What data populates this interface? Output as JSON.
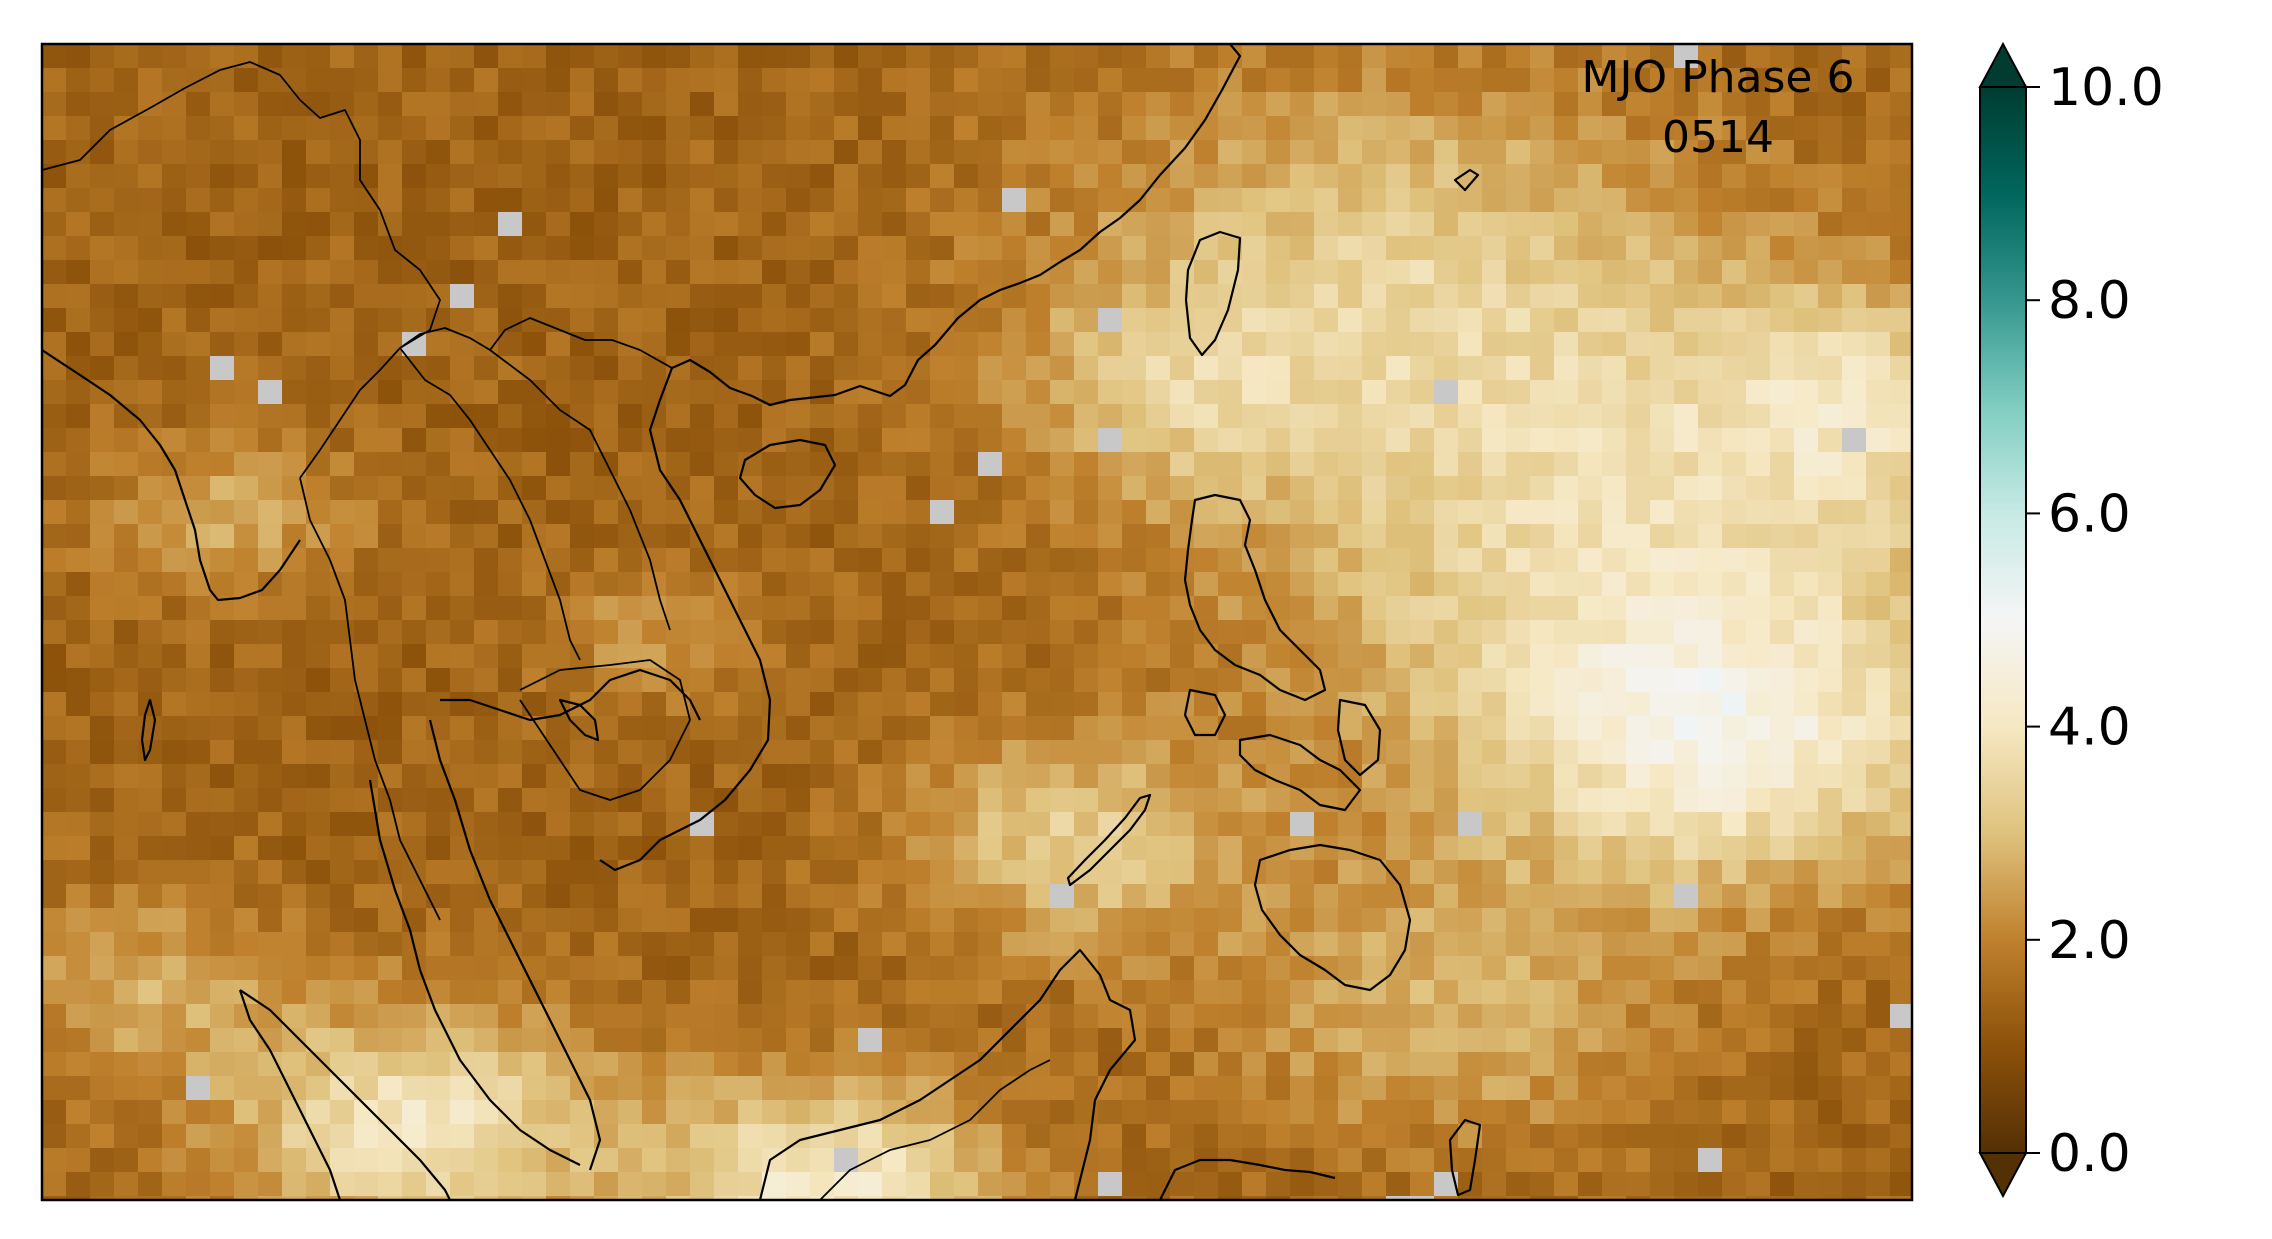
{
  "map": {
    "title": "MJO Phase 6",
    "subtitle": "0514",
    "variable_scale": {
      "min": 0.0,
      "max": 10.0,
      "extend": "both",
      "colormap": "BrBG",
      "missing_color": "#c8c8c8"
    },
    "colorbar": {
      "ticks": [
        {
          "value": 0.0,
          "label": "0.0"
        },
        {
          "value": 2.0,
          "label": "2.0"
        },
        {
          "value": 4.0,
          "label": "4.0"
        },
        {
          "value": 6.0,
          "label": "6.0"
        },
        {
          "value": 8.0,
          "label": "8.0"
        },
        {
          "value": 10.0,
          "label": "10.0"
        }
      ]
    },
    "colors": {
      "dark_brown": "#543005",
      "brown": "#8c510a",
      "tan": "#bf812d",
      "light_tan": "#dfc27d",
      "cream": "#f6e8c3",
      "white": "#f5f5f5",
      "light_teal": "#c7eae5",
      "teal": "#80cdc1",
      "mid_teal": "#35978f",
      "dark_teal": "#01665e",
      "deepest_teal": "#003c30"
    }
  }
}
